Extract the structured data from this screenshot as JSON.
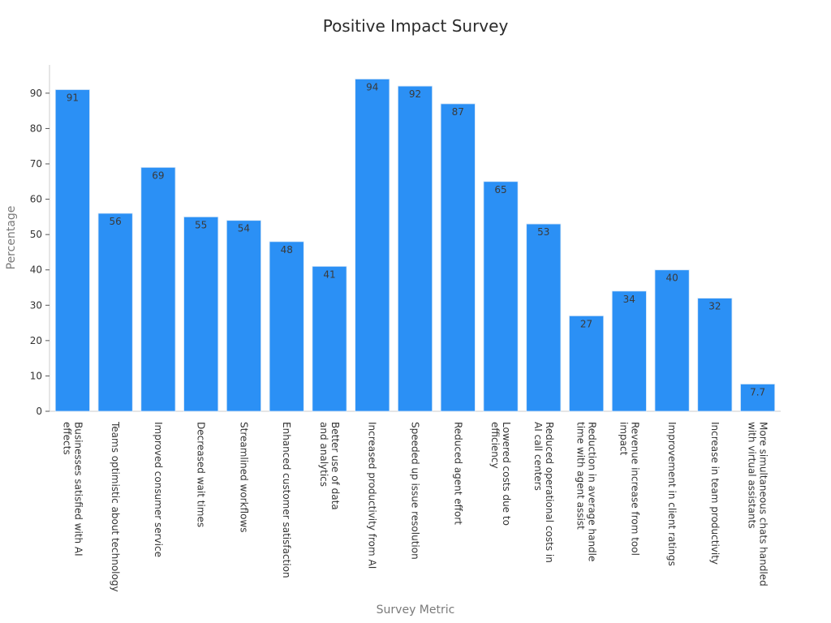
{
  "chart_data": {
    "type": "bar",
    "title": "Positive Impact Survey",
    "xlabel": "Survey Metric",
    "ylabel": "Percentage",
    "ylim": [
      0,
      98
    ],
    "yticks": [
      0,
      10,
      20,
      30,
      40,
      50,
      60,
      70,
      80,
      90
    ],
    "grid": false,
    "bar_color": "#2b90f5",
    "categories": [
      [
        "Businesses satisfied with AI",
        "effects"
      ],
      [
        "Teams optimistic about technology"
      ],
      [
        "Improved consumer service"
      ],
      [
        "Decreased wait times"
      ],
      [
        "Streamlined workflows"
      ],
      [
        "Enhanced customer satisfaction"
      ],
      [
        "Better use of data",
        "and analytics"
      ],
      [
        "Increased productivity from AI"
      ],
      [
        "Speeded up issue resolution"
      ],
      [
        "Reduced agent effort"
      ],
      [
        "Lowered costs due to",
        "efficiency"
      ],
      [
        "Reduced operational costs in",
        "AI call centers"
      ],
      [
        "Reduction in average handle",
        "time with agent assist"
      ],
      [
        "Revenue increase from tool",
        "impact"
      ],
      [
        "Improvement in client ratings"
      ],
      [
        "Increase in team productivity"
      ],
      [
        "More simultaneous chats handled",
        "with virtual assistants"
      ]
    ],
    "values": [
      91,
      56,
      69,
      55,
      54,
      48,
      41,
      94,
      92,
      87,
      65,
      53,
      27,
      34,
      40,
      32,
      7.7
    ],
    "value_labels": [
      "91",
      "56",
      "69",
      "55",
      "54",
      "48",
      "41",
      "94",
      "92",
      "87",
      "65",
      "53",
      "27",
      "34",
      "40",
      "32",
      "7.7"
    ]
  }
}
